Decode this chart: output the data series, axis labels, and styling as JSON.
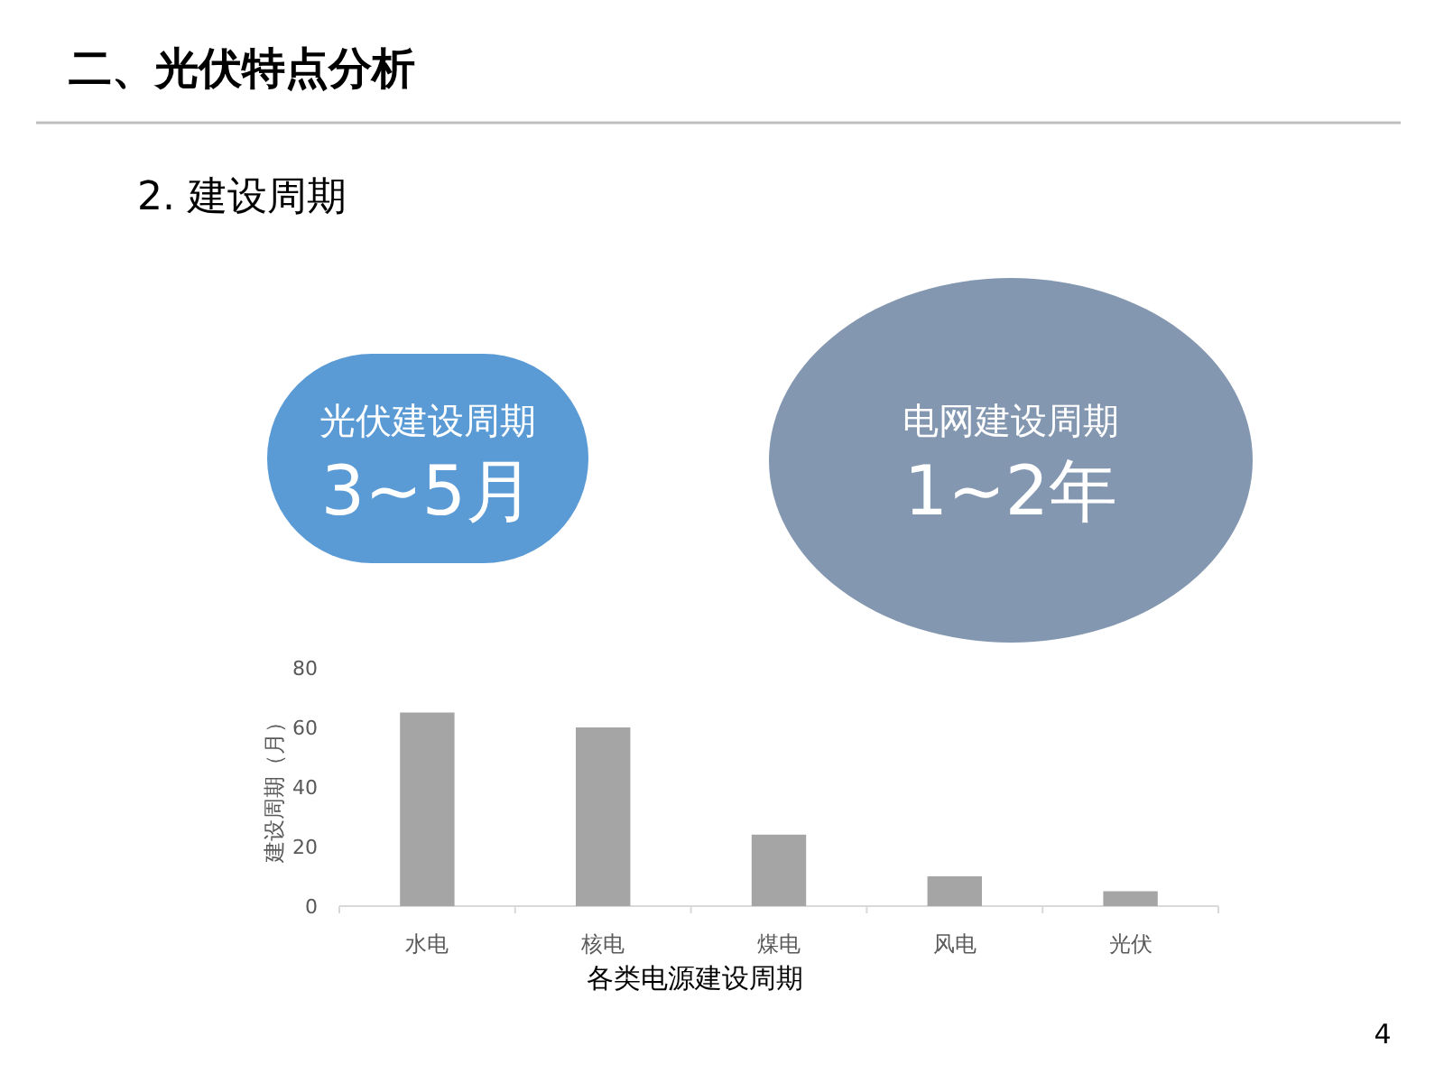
{
  "chart_data": {
    "type": "bar",
    "title": "二、光伏特点分析",
    "subtitle": "2. 建设周期",
    "xlabel": "各类电源建设周期",
    "ylabel": "建设周期（月）",
    "categories": [
      "水电",
      "核电",
      "煤电",
      "风电",
      "光伏"
    ],
    "values": [
      65,
      60,
      24,
      10,
      5
    ],
    "color": "#a5a5a5",
    "ylim": [
      0,
      80
    ],
    "yticks": [
      0,
      20,
      40,
      60,
      80
    ],
    "grid": false,
    "annotations": [
      "光伏建设周期",
      "3~5月",
      "电网建设周期",
      "1~2年",
      "4"
    ]
  }
}
